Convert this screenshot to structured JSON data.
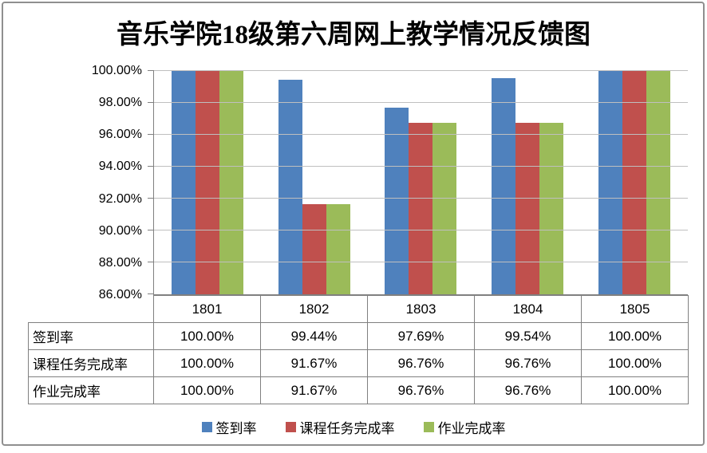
{
  "chart_data": {
    "type": "bar",
    "title": "音乐学院18级第六周网上教学情况反馈图",
    "categories": [
      "1801",
      "1802",
      "1803",
      "1804",
      "1805"
    ],
    "series": [
      {
        "name": "签到率",
        "color": "#4F81BD",
        "values": [
          100.0,
          99.44,
          97.69,
          99.54,
          100.0
        ]
      },
      {
        "name": "课程任务完成率",
        "color": "#C0504D",
        "values": [
          100.0,
          91.67,
          96.76,
          96.76,
          100.0
        ]
      },
      {
        "name": "作业完成率",
        "color": "#9BBB59",
        "values": [
          100.0,
          91.67,
          96.76,
          96.76,
          100.0
        ]
      }
    ],
    "ylim": [
      86,
      100
    ],
    "ytick_step": 2,
    "ytick_format": "0.00%",
    "grid": true,
    "legend_position": "bottom",
    "data_table_shown": true
  },
  "colors": {
    "gridline": "#BFBFBF",
    "axis": "#808080",
    "table_border": "#808080",
    "outer_border": "#8F8F8F",
    "background": "#FFFFFF",
    "text": "#000000"
  }
}
